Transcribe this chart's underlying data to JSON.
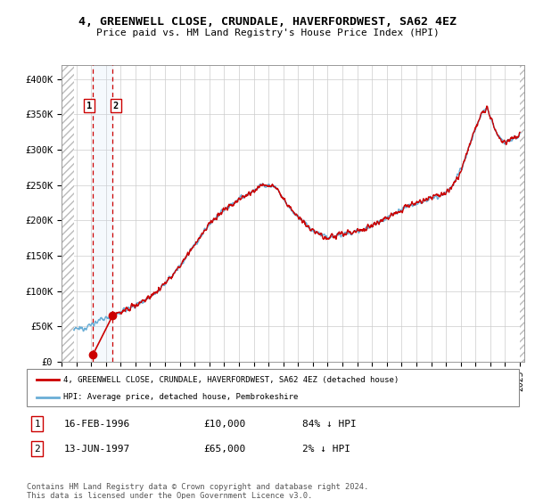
{
  "title_line1": "4, GREENWELL CLOSE, CRUNDALE, HAVERFORDWEST, SA62 4EZ",
  "title_line2": "Price paid vs. HM Land Registry's House Price Index (HPI)",
  "xlim_start": 1994.0,
  "xlim_end": 2025.3,
  "ylim_min": 0,
  "ylim_max": 420000,
  "yticks": [
    0,
    50000,
    100000,
    150000,
    200000,
    250000,
    300000,
    350000,
    400000
  ],
  "ytick_labels": [
    "£0",
    "£50K",
    "£100K",
    "£150K",
    "£200K",
    "£250K",
    "£300K",
    "£350K",
    "£400K"
  ],
  "sale_dates": [
    1996.12,
    1997.45
  ],
  "sale_prices": [
    10000,
    65000
  ],
  "sale_labels": [
    "1",
    "2"
  ],
  "hpi_color": "#6aaed6",
  "price_color": "#cc0000",
  "annotation_color_bg": "#ddeeff",
  "dashed_line_color": "#cc0000",
  "legend_label_price": "4, GREENWELL CLOSE, CRUNDALE, HAVERFORDWEST, SA62 4EZ (detached house)",
  "legend_label_hpi": "HPI: Average price, detached house, Pembrokeshire",
  "table_entries": [
    {
      "num": "1",
      "date": "16-FEB-1996",
      "price": "£10,000",
      "hpi": "84% ↓ HPI"
    },
    {
      "num": "2",
      "date": "13-JUN-1997",
      "price": "£65,000",
      "hpi": "2% ↓ HPI"
    }
  ],
  "footer": "Contains HM Land Registry data © Crown copyright and database right 2024.\nThis data is licensed under the Open Government Licence v3.0.",
  "grid_color": "#cccccc",
  "hatch_start": 1994.0,
  "hatch_end": 1994.83,
  "hatch_end2": 2025.0
}
